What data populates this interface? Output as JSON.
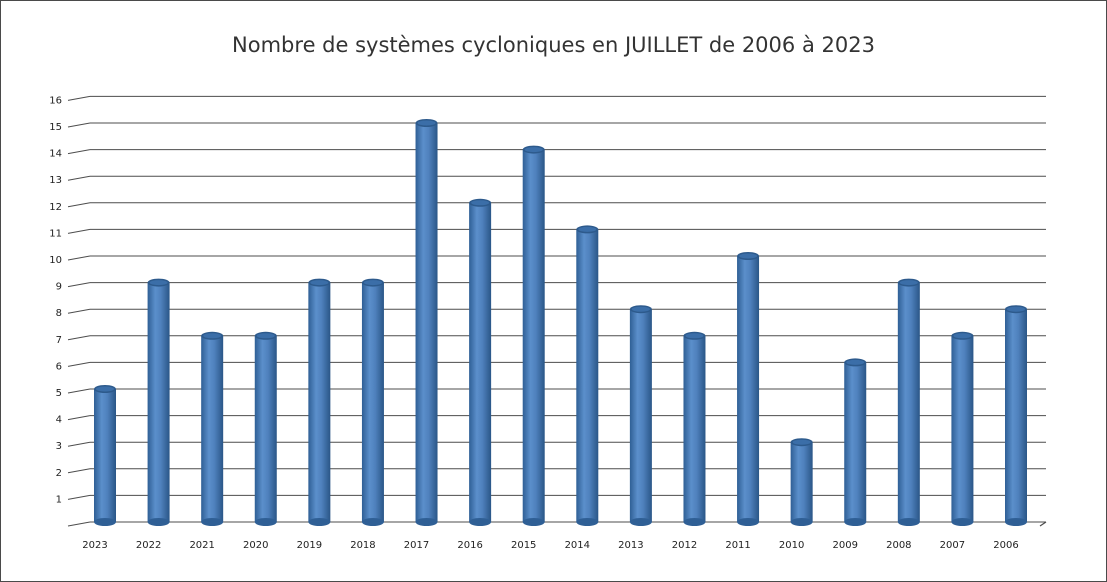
{
  "chart_data": {
    "type": "bar",
    "title": "Nombre de systèmes cycloniques en JUILLET de 2006 à 2023",
    "xlabel": "",
    "ylabel": "",
    "categories": [
      "2023",
      "2022",
      "2021",
      "2020",
      "2019",
      "2018",
      "2017",
      "2016",
      "2015",
      "2014",
      "2013",
      "2012",
      "2011",
      "2010",
      "2009",
      "2008",
      "2007",
      "2006"
    ],
    "values": [
      5,
      9,
      7,
      7,
      9,
      9,
      15,
      12,
      14,
      11,
      8,
      7,
      10,
      3,
      6,
      9,
      7,
      8
    ],
    "ylim": [
      0,
      16
    ],
    "y_ticks": [
      "1",
      "2",
      "3",
      "4",
      "5",
      "6",
      "7",
      "8",
      "9",
      "10",
      "11",
      "12",
      "13",
      "14",
      "15",
      "16"
    ],
    "grid": true,
    "legend": "none",
    "bar_color": "#4f81bd",
    "bar_shadow_color": "#2d5a8c"
  }
}
